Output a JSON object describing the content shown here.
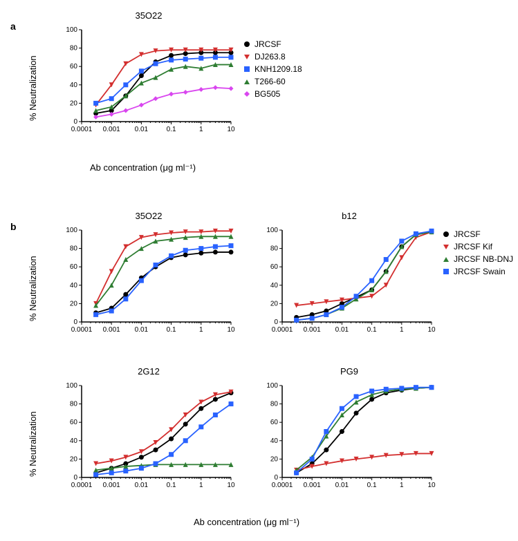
{
  "figure": {
    "panel_a_label": "a",
    "panel_b_label": "b",
    "y_axis_label": "% Neutralization",
    "x_axis_label": "Ab concentration (μg ml⁻¹)",
    "fonts": {
      "panel_label_size": 14,
      "title_size": 13,
      "axis_label_size": 13,
      "tick_size": 10,
      "legend_size": 12
    },
    "colors": {
      "background": "#ffffff",
      "axis": "#000000",
      "text": "#000000"
    }
  },
  "chart_a": {
    "title": "35O22",
    "type": "line-scatter",
    "x": [
      0.0003,
      0.001,
      0.003,
      0.01,
      0.03,
      0.1,
      0.3,
      1,
      3,
      10
    ],
    "xlim": [
      0.0001,
      10
    ],
    "xscale": "log",
    "ylim": [
      0,
      100
    ],
    "ytick_step": 20,
    "series": [
      {
        "name": "JRCSF",
        "color": "#000000",
        "marker": "circle",
        "y": [
          9,
          12,
          28,
          50,
          65,
          72,
          74,
          75,
          75,
          75
        ]
      },
      {
        "name": "DJ263.8",
        "color": "#d32f2f",
        "marker": "tri-down",
        "y": [
          18,
          40,
          63,
          73,
          77,
          78,
          78,
          78,
          78,
          78
        ]
      },
      {
        "name": "KNH1209.18",
        "color": "#2962ff",
        "marker": "square",
        "y": [
          20,
          25,
          40,
          55,
          63,
          67,
          68,
          69,
          70,
          70
        ]
      },
      {
        "name": "T266-60",
        "color": "#2e7d32",
        "marker": "tri-up",
        "y": [
          12,
          16,
          28,
          42,
          48,
          57,
          60,
          58,
          62,
          62
        ]
      },
      {
        "name": "BG505",
        "color": "#d946ef",
        "marker": "diamond",
        "y": [
          5,
          8,
          12,
          18,
          25,
          30,
          32,
          35,
          37,
          36
        ]
      }
    ]
  },
  "chart_b1": {
    "title": "35O22",
    "type": "line-scatter",
    "x": [
      0.0003,
      0.001,
      0.003,
      0.01,
      0.03,
      0.1,
      0.3,
      1,
      3,
      10
    ],
    "xlim": [
      0.0001,
      10
    ],
    "xscale": "log",
    "ylim": [
      0,
      100
    ],
    "ytick_step": 20,
    "series": [
      {
        "name": "JRCSF",
        "color": "#000000",
        "marker": "circle",
        "y": [
          10,
          15,
          30,
          48,
          60,
          70,
          73,
          75,
          76,
          76
        ]
      },
      {
        "name": "JRCSF Kif",
        "color": "#d32f2f",
        "marker": "tri-down",
        "y": [
          20,
          55,
          82,
          92,
          95,
          97,
          98,
          98,
          99,
          99
        ]
      },
      {
        "name": "JRCSF NB-DNJ",
        "color": "#2e7d32",
        "marker": "tri-up",
        "y": [
          18,
          40,
          68,
          80,
          88,
          90,
          92,
          93,
          93,
          93
        ]
      },
      {
        "name": "JRCSF Swain",
        "color": "#2962ff",
        "marker": "square",
        "y": [
          8,
          12,
          25,
          45,
          62,
          72,
          78,
          80,
          82,
          83
        ]
      }
    ]
  },
  "chart_b2": {
    "title": "b12",
    "type": "line-scatter",
    "x": [
      0.0003,
      0.001,
      0.003,
      0.01,
      0.03,
      0.1,
      0.3,
      1,
      3,
      10
    ],
    "xlim": [
      0.0001,
      10
    ],
    "xscale": "log",
    "ylim": [
      0,
      100
    ],
    "ytick_step": 20,
    "series": [
      {
        "name": "JRCSF",
        "color": "#000000",
        "marker": "circle",
        "y": [
          5,
          8,
          12,
          20,
          27,
          35,
          55,
          82,
          95,
          98
        ]
      },
      {
        "name": "JRCSF Kif",
        "color": "#d32f2f",
        "marker": "tri-down",
        "y": [
          18,
          20,
          22,
          24,
          26,
          28,
          40,
          70,
          92,
          98
        ]
      },
      {
        "name": "JRCSF NB-DNJ",
        "color": "#2e7d32",
        "marker": "tri-up",
        "y": [
          2,
          4,
          8,
          15,
          25,
          35,
          55,
          82,
          95,
          98
        ]
      },
      {
        "name": "JRCSF Swain",
        "color": "#2962ff",
        "marker": "square",
        "y": [
          2,
          4,
          8,
          16,
          28,
          45,
          68,
          88,
          96,
          99
        ]
      }
    ]
  },
  "chart_b3": {
    "title": "2G12",
    "type": "line-scatter",
    "x": [
      0.0003,
      0.001,
      0.003,
      0.01,
      0.03,
      0.1,
      0.3,
      1,
      3,
      10
    ],
    "xlim": [
      0.0001,
      10
    ],
    "xscale": "log",
    "ylim": [
      0,
      100
    ],
    "ytick_step": 20,
    "series": [
      {
        "name": "JRCSF",
        "color": "#000000",
        "marker": "circle",
        "y": [
          5,
          10,
          15,
          22,
          30,
          42,
          58,
          75,
          85,
          92
        ]
      },
      {
        "name": "JRCSF Kif",
        "color": "#d32f2f",
        "marker": "tri-down",
        "y": [
          15,
          18,
          22,
          28,
          38,
          52,
          68,
          82,
          90,
          93
        ]
      },
      {
        "name": "JRCSF NB-DNJ",
        "color": "#2e7d32",
        "marker": "tri-up",
        "y": [
          8,
          10,
          12,
          13,
          14,
          14,
          14,
          14,
          14,
          14
        ]
      },
      {
        "name": "JRCSF Swain",
        "color": "#2962ff",
        "marker": "square",
        "y": [
          3,
          5,
          7,
          10,
          15,
          25,
          40,
          55,
          68,
          80
        ]
      }
    ]
  },
  "chart_b4": {
    "title": "PG9",
    "type": "line-scatter",
    "x": [
      0.0003,
      0.001,
      0.003,
      0.01,
      0.03,
      0.1,
      0.3,
      1,
      3,
      10
    ],
    "xlim": [
      0.0001,
      10
    ],
    "xscale": "log",
    "ylim": [
      0,
      100
    ],
    "ytick_step": 20,
    "series": [
      {
        "name": "JRCSF",
        "color": "#000000",
        "marker": "circle",
        "y": [
          5,
          15,
          30,
          50,
          70,
          85,
          92,
          95,
          97,
          98
        ]
      },
      {
        "name": "JRCSF Kif",
        "color": "#d32f2f",
        "marker": "tri-down",
        "y": [
          8,
          12,
          15,
          18,
          20,
          22,
          24,
          25,
          26,
          26
        ]
      },
      {
        "name": "JRCSF NB-DNJ",
        "color": "#2e7d32",
        "marker": "tri-up",
        "y": [
          8,
          22,
          45,
          68,
          82,
          90,
          94,
          96,
          97,
          98
        ]
      },
      {
        "name": "JRCSF Swain",
        "color": "#2962ff",
        "marker": "square",
        "y": [
          5,
          20,
          50,
          75,
          88,
          94,
          96,
          97,
          98,
          98
        ]
      }
    ]
  },
  "legend_a": {
    "items": [
      {
        "label": "JRCSF",
        "color": "#000000",
        "marker": "circle"
      },
      {
        "label": "DJ263.8",
        "color": "#d32f2f",
        "marker": "tri-down"
      },
      {
        "label": "KNH1209.18",
        "color": "#2962ff",
        "marker": "square"
      },
      {
        "label": "T266-60",
        "color": "#2e7d32",
        "marker": "tri-up"
      },
      {
        "label": "BG505",
        "color": "#d946ef",
        "marker": "diamond"
      }
    ]
  },
  "legend_b": {
    "items": [
      {
        "label": "JRCSF",
        "color": "#000000",
        "marker": "circle"
      },
      {
        "label": "JRCSF Kif",
        "color": "#d32f2f",
        "marker": "tri-down"
      },
      {
        "label": "JRCSF NB-DNJ",
        "color": "#2e7d32",
        "marker": "tri-up"
      },
      {
        "label": "JRCSF Swain",
        "color": "#2962ff",
        "marker": "square"
      }
    ]
  }
}
